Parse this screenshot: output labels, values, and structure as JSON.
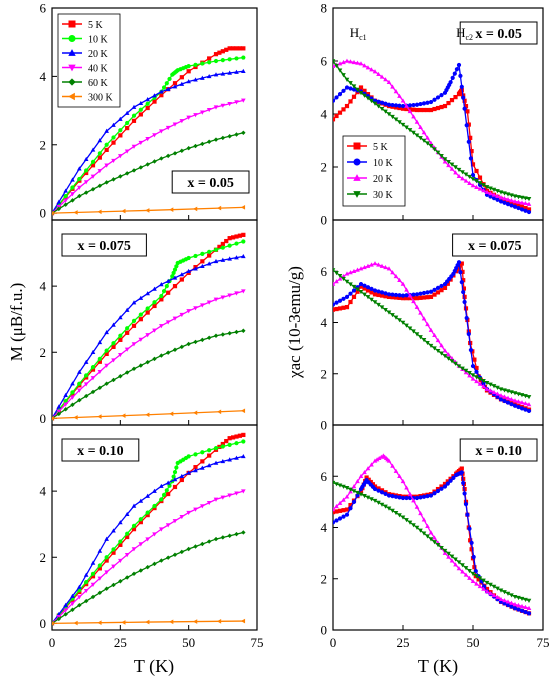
{
  "figure": {
    "shared_xlabel": "T  (K)",
    "left_ylabel": "M  (μB/f.u.)",
    "right_ylabel": "χac  (10-3emu/g)"
  },
  "chart_data": [
    {
      "type": "line",
      "column": "left",
      "row": 0,
      "annotation": "x = 0.05",
      "xlim": [
        0,
        75
      ],
      "ylim": [
        -0.2,
        6
      ],
      "xticks": [
        0,
        25,
        50,
        75
      ],
      "yticks": [
        0,
        2,
        4,
        6
      ],
      "show_xticklabels": false,
      "legend": "top-left",
      "series": [
        {
          "name": "5 K",
          "color": "#ff0000",
          "marker": "square",
          "x": [
            0,
            10,
            20,
            30,
            40,
            50,
            60,
            65,
            70
          ],
          "y": [
            0,
            0.95,
            1.85,
            2.7,
            3.45,
            4.15,
            4.65,
            4.82,
            4.82
          ]
        },
        {
          "name": "10 K",
          "color": "#00ff00",
          "marker": "circle",
          "x": [
            0,
            10,
            20,
            30,
            40,
            44,
            46,
            50,
            60,
            70
          ],
          "y": [
            0,
            1.0,
            2.0,
            2.85,
            3.55,
            4.05,
            4.18,
            4.3,
            4.45,
            4.55
          ]
        },
        {
          "name": "20 K",
          "color": "#0000ff",
          "marker": "triangle-up",
          "x": [
            0,
            10,
            20,
            30,
            40,
            50,
            60,
            70
          ],
          "y": [
            0,
            1.3,
            2.4,
            3.1,
            3.55,
            3.85,
            4.05,
            4.15
          ]
        },
        {
          "name": "40 K",
          "color": "#ff00ff",
          "marker": "triangle-down",
          "x": [
            0,
            10,
            20,
            30,
            40,
            50,
            60,
            70
          ],
          "y": [
            0,
            0.75,
            1.4,
            1.95,
            2.4,
            2.8,
            3.1,
            3.3
          ]
        },
        {
          "name": "60 K",
          "color": "#008000",
          "marker": "diamond",
          "x": [
            0,
            10,
            20,
            30,
            40,
            50,
            60,
            70
          ],
          "y": [
            0,
            0.5,
            0.9,
            1.25,
            1.6,
            1.9,
            2.15,
            2.35
          ]
        },
        {
          "name": "300 K",
          "color": "#ff8000",
          "marker": "triangle-left",
          "x": [
            0,
            35,
            70
          ],
          "y": [
            0,
            0.08,
            0.17
          ]
        }
      ]
    },
    {
      "type": "line",
      "column": "left",
      "row": 1,
      "annotation": "x = 0.075",
      "xlim": [
        0,
        75
      ],
      "ylim": [
        -0.2,
        6
      ],
      "xticks": [
        0,
        25,
        50,
        75
      ],
      "yticks": [
        0,
        2,
        4
      ],
      "show_xticklabels": false,
      "series": [
        {
          "name": "5 K",
          "color": "#ff0000",
          "x": [
            0,
            10,
            20,
            30,
            40,
            50,
            60,
            65,
            70
          ],
          "y": [
            0,
            1.0,
            1.95,
            2.8,
            3.6,
            4.4,
            5.1,
            5.45,
            5.55
          ]
        },
        {
          "name": "10 K",
          "color": "#00ff00",
          "x": [
            0,
            10,
            20,
            30,
            40,
            44,
            46,
            50,
            60,
            70
          ],
          "y": [
            0,
            1.05,
            2.05,
            2.95,
            3.7,
            4.3,
            4.7,
            4.85,
            5.1,
            5.35
          ]
        },
        {
          "name": "20 K",
          "color": "#0000ff",
          "x": [
            0,
            10,
            20,
            30,
            40,
            50,
            60,
            70
          ],
          "y": [
            0,
            1.4,
            2.6,
            3.5,
            4.05,
            4.45,
            4.75,
            4.9
          ]
        },
        {
          "name": "40 K",
          "color": "#ff00ff",
          "x": [
            0,
            10,
            20,
            30,
            40,
            50,
            60,
            70
          ],
          "y": [
            0,
            0.85,
            1.6,
            2.25,
            2.8,
            3.25,
            3.6,
            3.85
          ]
        },
        {
          "name": "60 K",
          "color": "#008000",
          "x": [
            0,
            10,
            20,
            30,
            40,
            50,
            60,
            70
          ],
          "y": [
            0,
            0.55,
            1.05,
            1.5,
            1.9,
            2.25,
            2.5,
            2.65
          ]
        },
        {
          "name": "300 K",
          "color": "#ff8000",
          "x": [
            0,
            35,
            70
          ],
          "y": [
            0,
            0.11,
            0.23
          ]
        }
      ]
    },
    {
      "type": "line",
      "column": "left",
      "row": 2,
      "annotation": "x = 0.10",
      "xlim": [
        0,
        75
      ],
      "ylim": [
        -0.2,
        6
      ],
      "xticks": [
        0,
        25,
        50,
        75
      ],
      "yticks": [
        0,
        2,
        4
      ],
      "show_xticklabels": true,
      "series": [
        {
          "name": "5 K",
          "color": "#ff0000",
          "x": [
            0,
            10,
            20,
            30,
            40,
            50,
            60,
            65,
            70
          ],
          "y": [
            0,
            0.95,
            1.9,
            2.85,
            3.7,
            4.55,
            5.25,
            5.6,
            5.7
          ]
        },
        {
          "name": "10 K",
          "color": "#00ff00",
          "x": [
            0,
            10,
            20,
            30,
            40,
            44,
            46,
            50,
            60,
            70
          ],
          "y": [
            0,
            1.0,
            2.0,
            2.95,
            3.75,
            4.3,
            4.85,
            5.05,
            5.3,
            5.5
          ]
        },
        {
          "name": "20 K",
          "color": "#0000ff",
          "x": [
            0,
            10,
            20,
            30,
            40,
            50,
            60,
            70
          ],
          "y": [
            0,
            1.1,
            2.55,
            3.55,
            4.15,
            4.55,
            4.85,
            5.05
          ]
        },
        {
          "name": "40 K",
          "color": "#ff00ff",
          "x": [
            0,
            10,
            20,
            30,
            40,
            50,
            60,
            70
          ],
          "y": [
            0,
            0.8,
            1.55,
            2.25,
            2.85,
            3.35,
            3.75,
            4.0
          ]
        },
        {
          "name": "60 K",
          "color": "#008000",
          "x": [
            0,
            10,
            20,
            30,
            40,
            50,
            60,
            70
          ],
          "y": [
            0,
            0.55,
            1.05,
            1.5,
            1.9,
            2.25,
            2.55,
            2.75
          ]
        },
        {
          "name": "300 K",
          "color": "#ff8000",
          "x": [
            0,
            35,
            70
          ],
          "y": [
            0,
            0.04,
            0.07
          ]
        }
      ]
    },
    {
      "type": "line",
      "column": "right",
      "row": 0,
      "annotation": "x = 0.05",
      "labels": [
        "Hc1",
        "Hc2"
      ],
      "xlim": [
        0,
        75
      ],
      "ylim": [
        0,
        8
      ],
      "xticks": [
        0,
        25,
        50,
        75
      ],
      "yticks": [
        0,
        2,
        4,
        6,
        8
      ],
      "show_xticklabels": false,
      "legend": "left",
      "series": [
        {
          "name": "5 K",
          "color": "#ff0000",
          "marker": "square",
          "x": [
            0,
            5,
            10,
            15,
            20,
            25,
            30,
            35,
            40,
            45,
            46,
            48,
            50,
            55,
            60,
            65,
            70
          ],
          "y": [
            3.8,
            4.3,
            5.0,
            4.5,
            4.3,
            4.2,
            4.15,
            4.15,
            4.3,
            4.75,
            4.9,
            4.1,
            2.1,
            1.1,
            0.8,
            0.6,
            0.4
          ]
        },
        {
          "name": "10 K",
          "color": "#0000ff",
          "marker": "circle",
          "x": [
            0,
            5,
            10,
            15,
            20,
            25,
            30,
            35,
            40,
            42,
            45,
            47,
            50,
            55,
            60,
            65,
            70
          ],
          "y": [
            4.5,
            5.0,
            4.85,
            4.5,
            4.35,
            4.3,
            4.35,
            4.45,
            4.8,
            5.2,
            5.85,
            4.2,
            1.7,
            0.95,
            0.7,
            0.5,
            0.3
          ]
        },
        {
          "name": "20 K",
          "color": "#ff00ff",
          "marker": "triangle-up",
          "x": [
            0,
            5,
            10,
            15,
            20,
            25,
            30,
            35,
            40,
            45,
            50,
            55,
            60,
            65,
            70
          ],
          "y": [
            5.8,
            6.0,
            5.9,
            5.6,
            5.2,
            4.5,
            3.7,
            2.9,
            2.2,
            1.65,
            1.3,
            1.05,
            0.85,
            0.7,
            0.6
          ]
        },
        {
          "name": "30 K",
          "color": "#008000",
          "marker": "triangle-down",
          "x": [
            0,
            5,
            10,
            15,
            20,
            25,
            30,
            35,
            40,
            45,
            50,
            55,
            60,
            65,
            70
          ],
          "y": [
            6.0,
            5.3,
            4.8,
            4.4,
            4.0,
            3.6,
            3.2,
            2.8,
            2.3,
            1.9,
            1.55,
            1.25,
            1.05,
            0.9,
            0.8
          ]
        }
      ]
    },
    {
      "type": "line",
      "column": "right",
      "row": 1,
      "annotation": "x = 0.075",
      "xlim": [
        0,
        75
      ],
      "ylim": [
        0,
        8
      ],
      "xticks": [
        0,
        25,
        50,
        75
      ],
      "yticks": [
        0,
        2,
        4,
        6
      ],
      "show_xticklabels": false,
      "series": [
        {
          "name": "5 K",
          "color": "#ff0000",
          "x": [
            0,
            5,
            10,
            15,
            20,
            25,
            30,
            35,
            40,
            44,
            46,
            47,
            49,
            52,
            55,
            60,
            65,
            70
          ],
          "y": [
            4.5,
            4.6,
            5.4,
            5.1,
            5.0,
            4.95,
            4.95,
            5.0,
            5.35,
            6.0,
            6.3,
            5.0,
            3.2,
            1.9,
            1.35,
            1.0,
            0.8,
            0.6
          ]
        },
        {
          "name": "10 K",
          "color": "#0000ff",
          "x": [
            0,
            5,
            10,
            15,
            20,
            25,
            30,
            35,
            40,
            43,
            45,
            47,
            50,
            55,
            60,
            65,
            70
          ],
          "y": [
            4.7,
            5.0,
            5.5,
            5.25,
            5.1,
            5.05,
            5.1,
            5.2,
            5.5,
            5.9,
            6.35,
            4.8,
            2.3,
            1.4,
            1.0,
            0.75,
            0.55
          ]
        },
        {
          "name": "20 K",
          "color": "#ff00ff",
          "x": [
            0,
            5,
            10,
            15,
            20,
            25,
            30,
            35,
            40,
            45,
            50,
            55,
            60,
            65,
            70
          ],
          "y": [
            5.5,
            5.9,
            6.1,
            6.3,
            6.1,
            5.5,
            4.6,
            3.7,
            2.9,
            2.3,
            1.8,
            1.4,
            1.15,
            0.95,
            0.8
          ]
        },
        {
          "name": "30 K",
          "color": "#008000",
          "x": [
            0,
            5,
            10,
            15,
            20,
            25,
            30,
            35,
            40,
            45,
            50,
            55,
            60,
            65,
            70
          ],
          "y": [
            6.05,
            5.6,
            5.2,
            4.8,
            4.4,
            4.0,
            3.55,
            3.1,
            2.7,
            2.3,
            1.95,
            1.65,
            1.4,
            1.25,
            1.1
          ]
        }
      ]
    },
    {
      "type": "line",
      "column": "right",
      "row": 2,
      "annotation": "x = 0.10",
      "xlim": [
        0,
        75
      ],
      "ylim": [
        0,
        8
      ],
      "xticks": [
        0,
        25,
        50,
        75
      ],
      "yticks": [
        0,
        2,
        4,
        6
      ],
      "show_xticklabels": true,
      "series": [
        {
          "name": "5 K",
          "color": "#ff0000",
          "x": [
            0,
            5,
            10,
            12,
            15,
            20,
            25,
            30,
            35,
            40,
            44,
            46,
            47,
            49,
            51,
            55,
            60,
            65,
            70
          ],
          "y": [
            4.6,
            4.7,
            5.4,
            5.95,
            5.6,
            5.3,
            5.2,
            5.2,
            5.3,
            5.7,
            6.1,
            6.3,
            5.5,
            3.5,
            2.1,
            1.6,
            1.1,
            0.85,
            0.65
          ]
        },
        {
          "name": "10 K",
          "color": "#0000ff",
          "x": [
            0,
            5,
            10,
            12,
            15,
            20,
            25,
            30,
            35,
            40,
            44,
            46,
            48,
            51,
            55,
            60,
            65,
            70
          ],
          "y": [
            4.2,
            4.5,
            5.5,
            5.85,
            5.5,
            5.25,
            5.15,
            5.15,
            5.25,
            5.6,
            6.05,
            6.15,
            4.5,
            2.3,
            1.5,
            1.1,
            0.85,
            0.65
          ]
        },
        {
          "name": "20 K",
          "color": "#ff00ff",
          "x": [
            0,
            5,
            10,
            15,
            18,
            20,
            25,
            30,
            35,
            40,
            45,
            50,
            55,
            60,
            65,
            70
          ],
          "y": [
            4.7,
            5.2,
            6.0,
            6.6,
            6.8,
            6.6,
            5.8,
            4.8,
            3.8,
            3.0,
            2.4,
            1.9,
            1.5,
            1.2,
            1.0,
            0.85
          ]
        },
        {
          "name": "30 K",
          "color": "#008000",
          "x": [
            0,
            5,
            10,
            15,
            20,
            25,
            30,
            35,
            40,
            45,
            50,
            55,
            60,
            65,
            70
          ],
          "y": [
            5.75,
            5.55,
            5.3,
            5.05,
            4.75,
            4.4,
            4.0,
            3.55,
            3.1,
            2.65,
            2.2,
            1.85,
            1.55,
            1.3,
            1.15
          ]
        }
      ]
    }
  ]
}
